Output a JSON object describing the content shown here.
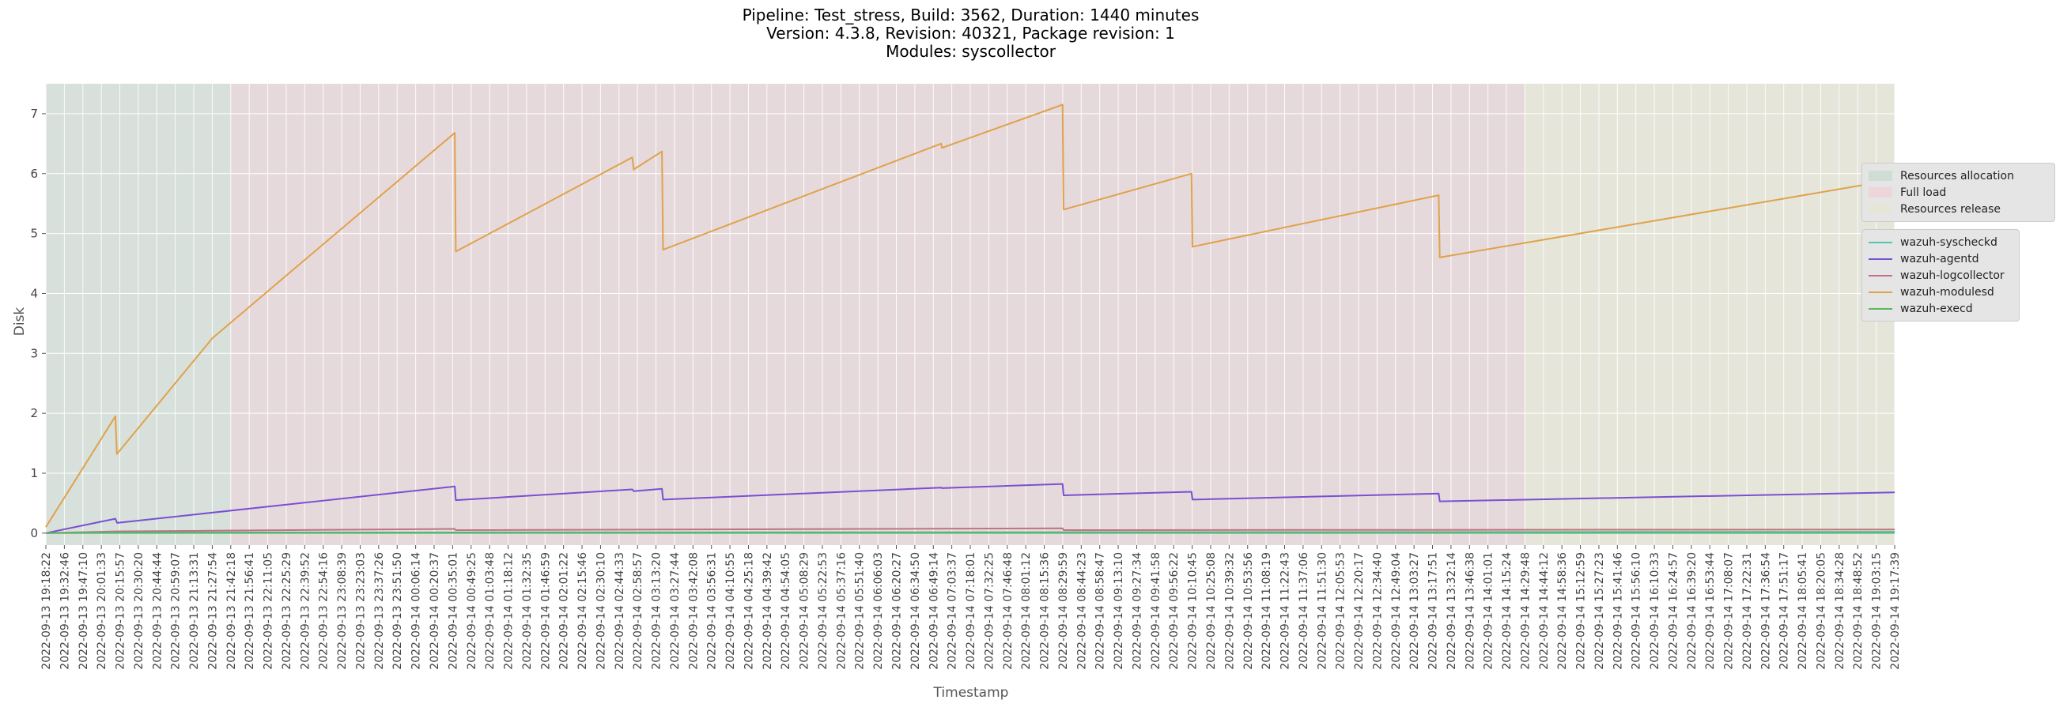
{
  "title_lines": [
    "Pipeline: Test_stress, Build: 3562, Duration: 1440 minutes",
    "Version: 4.3.8, Revision: 40321, Package revision: 1",
    "Modules: syscollector"
  ],
  "phases_legend": [
    {
      "label": "Resources allocation",
      "color": "#6a9f7a"
    },
    {
      "label": "Full load",
      "color": "#cf7c8a"
    },
    {
      "label": "Resources release",
      "color": "#bcc28a"
    }
  ],
  "chart_data": {
    "type": "line",
    "xlabel": "Timestamp",
    "ylabel": "Disk",
    "ylim": [
      -0.2,
      7.5
    ],
    "yticks": [
      0,
      1,
      2,
      3,
      4,
      5,
      6,
      7
    ],
    "grid": true,
    "legend_position": "right",
    "x_tick_labels": [
      "2022-09-13 19:18:22",
      "2022-09-13 19:32:46",
      "2022-09-13 19:47:10",
      "2022-09-13 20:01:33",
      "2022-09-13 20:15:57",
      "2022-09-13 20:30:20",
      "2022-09-13 20:44:44",
      "2022-09-13 20:59:07",
      "2022-09-13 21:13:31",
      "2022-09-13 21:27:54",
      "2022-09-13 21:42:18",
      "2022-09-13 21:56:41",
      "2022-09-13 22:11:05",
      "2022-09-13 22:25:29",
      "2022-09-13 22:39:52",
      "2022-09-13 22:54:16",
      "2022-09-13 23:08:39",
      "2022-09-13 23:23:03",
      "2022-09-13 23:37:26",
      "2022-09-13 23:51:50",
      "2022-09-14 00:06:14",
      "2022-09-14 00:20:37",
      "2022-09-14 00:35:01",
      "2022-09-14 00:49:25",
      "2022-09-14 01:03:48",
      "2022-09-14 01:18:12",
      "2022-09-14 01:32:35",
      "2022-09-14 01:46:59",
      "2022-09-14 02:01:22",
      "2022-09-14 02:15:46",
      "2022-09-14 02:30:10",
      "2022-09-14 02:44:33",
      "2022-09-14 02:58:57",
      "2022-09-14 03:13:20",
      "2022-09-14 03:27:44",
      "2022-09-14 03:42:08",
      "2022-09-14 03:56:31",
      "2022-09-14 04:10:55",
      "2022-09-14 04:25:18",
      "2022-09-14 04:39:42",
      "2022-09-14 04:54:05",
      "2022-09-14 05:08:29",
      "2022-09-14 05:22:53",
      "2022-09-14 05:37:16",
      "2022-09-14 05:51:40",
      "2022-09-14 06:06:03",
      "2022-09-14 06:20:27",
      "2022-09-14 06:34:50",
      "2022-09-14 06:49:14",
      "2022-09-14 07:03:37",
      "2022-09-14 07:18:01",
      "2022-09-14 07:32:25",
      "2022-09-14 07:46:48",
      "2022-09-14 08:01:12",
      "2022-09-14 08:15:36",
      "2022-09-14 08:29:59",
      "2022-09-14 08:44:23",
      "2022-09-14 08:58:47",
      "2022-09-14 09:13:10",
      "2022-09-14 09:27:34",
      "2022-09-14 09:41:58",
      "2022-09-14 09:56:22",
      "2022-09-14 10:10:45",
      "2022-09-14 10:25:08",
      "2022-09-14 10:39:32",
      "2022-09-14 10:53:56",
      "2022-09-14 11:08:19",
      "2022-09-14 11:22:43",
      "2022-09-14 11:37:06",
      "2022-09-14 11:51:30",
      "2022-09-14 12:05:53",
      "2022-09-14 12:20:17",
      "2022-09-14 12:34:40",
      "2022-09-14 12:49:04",
      "2022-09-14 13:03:27",
      "2022-09-14 13:17:51",
      "2022-09-14 13:32:14",
      "2022-09-14 13:46:38",
      "2022-09-14 14:01:01",
      "2022-09-14 14:15:24",
      "2022-09-14 14:29:48",
      "2022-09-14 14:44:12",
      "2022-09-14 14:58:36",
      "2022-09-14 15:12:59",
      "2022-09-14 15:27:23",
      "2022-09-14 15:41:46",
      "2022-09-14 15:56:10",
      "2022-09-14 16:10:33",
      "2022-09-14 16:24:57",
      "2022-09-14 16:39:20",
      "2022-09-14 16:53:44",
      "2022-09-14 17:08:07",
      "2022-09-14 17:22:31",
      "2022-09-14 17:36:54",
      "2022-09-14 17:51:17",
      "2022-09-14 18:05:41",
      "2022-09-14 18:20:05",
      "2022-09-14 18:34:28",
      "2022-09-14 18:48:52",
      "2022-09-14 19:03:15",
      "2022-09-14 19:17:39"
    ],
    "phases": [
      {
        "name": "Resources allocation",
        "start": "2022-09-13 19:18:22",
        "end": "2022-09-13 21:42:18",
        "color": "#6a9f7a"
      },
      {
        "name": "Full load",
        "start": "2022-09-13 21:42:18",
        "end": "2022-09-14 14:29:48",
        "color": "#cf7c8a"
      },
      {
        "name": "Resources release",
        "start": "2022-09-14 14:29:48",
        "end": "2022-09-14 19:17:39",
        "color": "#bcc28a"
      }
    ],
    "series": [
      {
        "name": "wazuh-syscheckd",
        "color": "#57c4ae",
        "points": [
          [
            "2022-09-13 19:18:22",
            0.0
          ],
          [
            "2022-09-14 19:17:39",
            0.0
          ]
        ]
      },
      {
        "name": "wazuh-agentd",
        "color": "#7b4fd1",
        "points": [
          [
            "2022-09-13 19:18:22",
            0.0
          ],
          [
            "2022-09-13 20:12:30",
            0.24
          ],
          [
            "2022-09-13 20:13:50",
            0.17
          ],
          [
            "2022-09-14 00:36:40",
            0.78
          ],
          [
            "2022-09-14 00:37:30",
            0.55
          ],
          [
            "2022-09-14 02:54:50",
            0.73
          ],
          [
            "2022-09-14 02:56:00",
            0.7
          ],
          [
            "2022-09-14 03:18:00",
            0.74
          ],
          [
            "2022-09-14 03:18:50",
            0.56
          ],
          [
            "2022-09-14 06:55:20",
            0.76
          ],
          [
            "2022-09-14 06:56:00",
            0.75
          ],
          [
            "2022-09-14 08:29:50",
            0.82
          ],
          [
            "2022-09-14 08:30:40",
            0.63
          ],
          [
            "2022-09-14 10:10:10",
            0.69
          ],
          [
            "2022-09-14 10:11:00",
            0.56
          ],
          [
            "2022-09-14 13:22:40",
            0.66
          ],
          [
            "2022-09-14 13:23:30",
            0.53
          ],
          [
            "2022-09-14 19:17:39",
            0.68
          ]
        ]
      },
      {
        "name": "wazuh-logcollector",
        "color": "#c0728b",
        "points": [
          [
            "2022-09-13 19:18:22",
            0.0
          ],
          [
            "2022-09-13 20:13:30",
            0.03
          ],
          [
            "2022-09-14 00:36:40",
            0.07
          ],
          [
            "2022-09-14 00:37:30",
            0.05
          ],
          [
            "2022-09-14 08:29:50",
            0.08
          ],
          [
            "2022-09-14 08:30:40",
            0.05
          ],
          [
            "2022-09-14 19:17:39",
            0.06
          ]
        ]
      },
      {
        "name": "wazuh-modulesd",
        "color": "#e0a24a",
        "points": [
          [
            "2022-09-13 19:18:22",
            0.1
          ],
          [
            "2022-09-13 20:12:30",
            1.95
          ],
          [
            "2022-09-13 20:13:40",
            1.32
          ],
          [
            "2022-09-13 21:27:54",
            3.25
          ],
          [
            "2022-09-13 22:39:52",
            4.56
          ],
          [
            "2022-09-14 00:36:40",
            6.68
          ],
          [
            "2022-09-14 00:37:30",
            4.7
          ],
          [
            "2022-09-14 02:54:50",
            6.27
          ],
          [
            "2022-09-14 02:56:00",
            6.07
          ],
          [
            "2022-09-14 03:18:00",
            6.37
          ],
          [
            "2022-09-14 03:18:50",
            4.73
          ],
          [
            "2022-09-14 06:55:20",
            6.5
          ],
          [
            "2022-09-14 06:56:00",
            6.43
          ],
          [
            "2022-09-14 08:29:50",
            7.15
          ],
          [
            "2022-09-14 08:30:40",
            5.4
          ],
          [
            "2022-09-14 10:10:10",
            6.0
          ],
          [
            "2022-09-14 10:11:00",
            4.78
          ],
          [
            "2022-09-14 13:22:40",
            5.64
          ],
          [
            "2022-09-14 13:23:30",
            4.6
          ],
          [
            "2022-09-14 19:17:39",
            5.9
          ]
        ]
      },
      {
        "name": "wazuh-execd",
        "color": "#5cb85c",
        "points": [
          [
            "2022-09-13 19:18:22",
            0.0
          ],
          [
            "2022-09-13 20:13:30",
            0.01
          ],
          [
            "2022-09-14 19:17:39",
            0.02
          ]
        ]
      }
    ]
  }
}
